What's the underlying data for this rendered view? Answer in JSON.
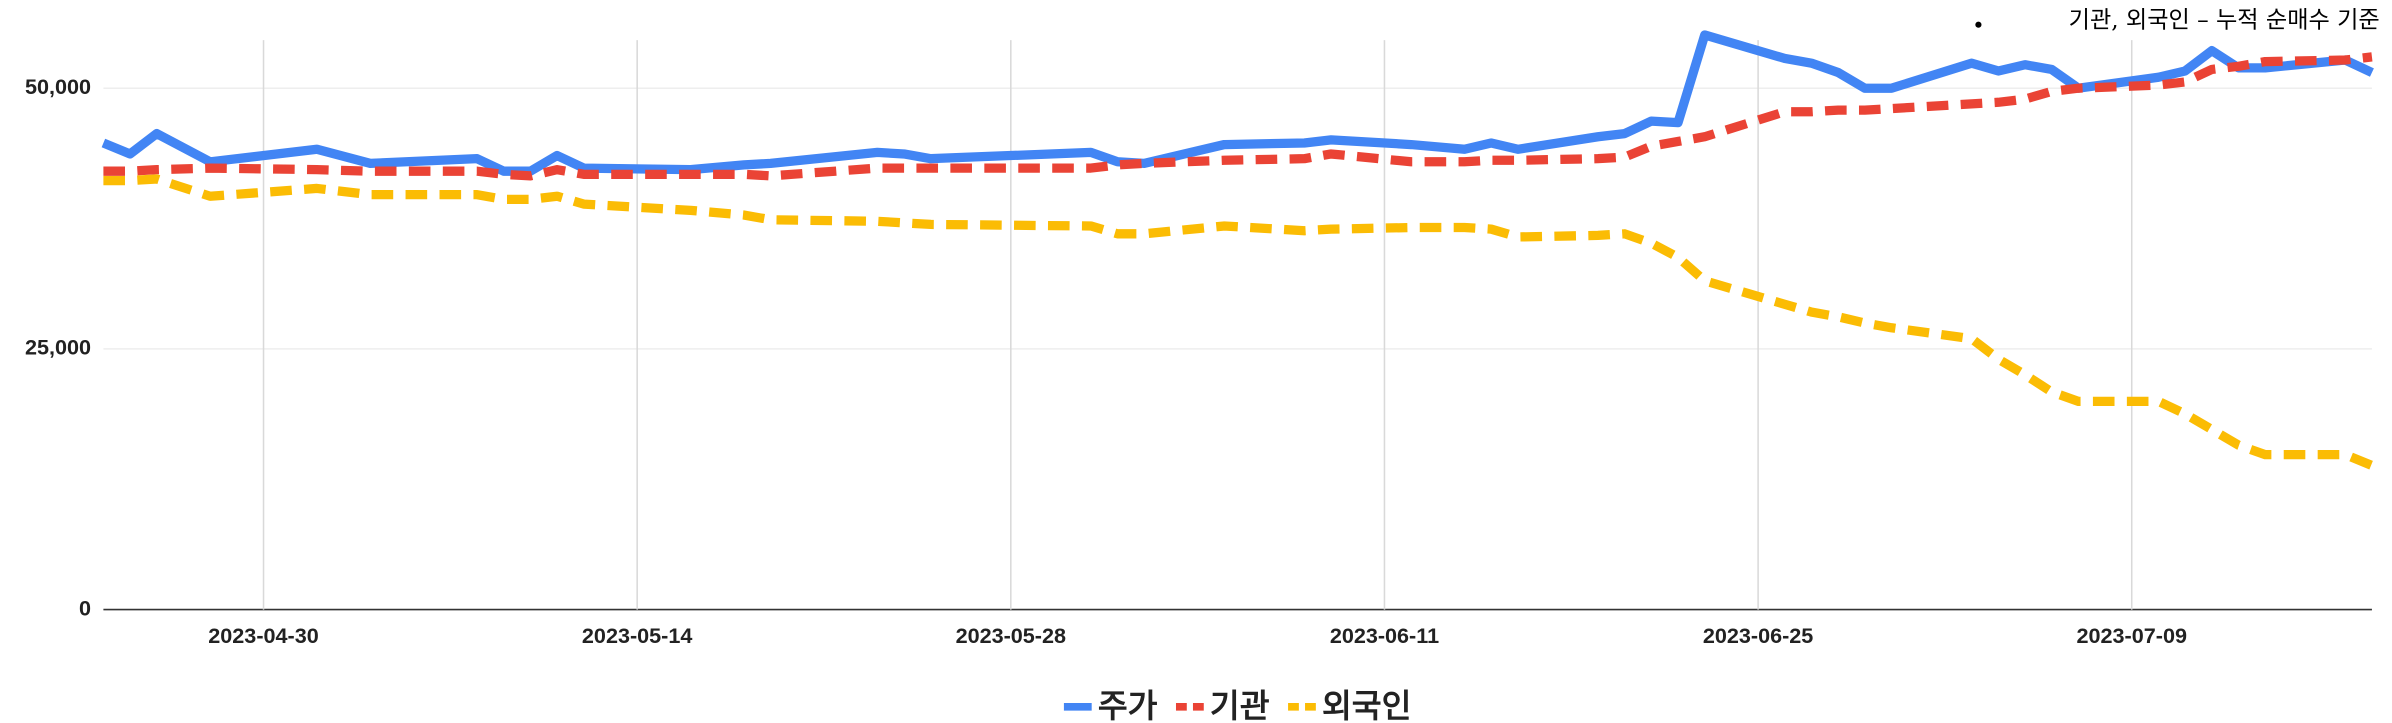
{
  "chart_data": {
    "type": "line",
    "note": "기관, 외국인 – 누적 순매수 기준",
    "x": [
      "2023-04-24",
      "2023-04-25",
      "2023-04-26",
      "2023-04-28",
      "2023-05-02",
      "2023-05-04",
      "2023-05-08",
      "2023-05-09",
      "2023-05-10",
      "2023-05-11",
      "2023-05-12",
      "2023-05-16",
      "2023-05-18",
      "2023-05-19",
      "2023-05-23",
      "2023-05-24",
      "2023-05-25",
      "2023-05-31",
      "2023-06-01",
      "2023-06-02",
      "2023-06-05",
      "2023-06-08",
      "2023-06-09",
      "2023-06-12",
      "2023-06-14",
      "2023-06-15",
      "2023-06-16",
      "2023-06-19",
      "2023-06-20",
      "2023-06-21",
      "2023-06-22",
      "2023-06-23",
      "2023-06-26",
      "2023-06-27",
      "2023-06-28",
      "2023-06-29",
      "2023-06-30",
      "2023-07-03",
      "2023-07-04",
      "2023-07-05",
      "2023-07-06",
      "2023-07-07",
      "2023-07-10",
      "2023-07-11",
      "2023-07-12",
      "2023-07-13",
      "2023-07-14",
      "2023-07-17",
      "2023-07-18"
    ],
    "series": [
      {
        "name": "주가",
        "color": "#4285f4",
        "line_style": "solid",
        "values": [
          44745,
          43694,
          45646,
          42943,
          44144,
          42793,
          43243,
          42042,
          42042,
          43544,
          42342,
          42192,
          42643,
          42793,
          43844,
          43694,
          43243,
          43844,
          42943,
          42793,
          44595,
          44745,
          45045,
          44595,
          44144,
          44745,
          44144,
          45345,
          45646,
          46847,
          46697,
          55105,
          52853,
          52402,
          51502,
          50000,
          50000,
          52402,
          51652,
          52252,
          51802,
          50000,
          51051,
          51652,
          53604,
          51952,
          51952,
          52703,
          51502
        ]
      },
      {
        "name": "기관",
        "color": "#ea4335",
        "line_style": "dashed",
        "values": [
          42042,
          42042,
          42192,
          42342,
          42192,
          42042,
          42042,
          41742,
          41591,
          42192,
          41742,
          41742,
          41742,
          41591,
          42342,
          42342,
          42342,
          42342,
          42643,
          42793,
          43093,
          43243,
          43694,
          42943,
          42943,
          43093,
          43093,
          43243,
          43393,
          44444,
          44895,
          45345,
          47748,
          47748,
          47898,
          47898,
          48048,
          48498,
          48649,
          48949,
          49700,
          50000,
          50300,
          50601,
          51802,
          52102,
          52553,
          52703,
          53003
        ]
      },
      {
        "name": "외국인",
        "color": "#fbbc04",
        "line_style": "dashed",
        "values": [
          41141,
          41141,
          41291,
          39640,
          40390,
          39790,
          39790,
          39339,
          39339,
          39640,
          38889,
          38288,
          37838,
          37387,
          37237,
          37087,
          36937,
          36787,
          36036,
          36036,
          36787,
          36336,
          36486,
          36637,
          36637,
          36486,
          35736,
          35886,
          36036,
          35135,
          33784,
          31532,
          29279,
          28529,
          28078,
          27477,
          27027,
          25976,
          24024,
          22523,
          20871,
          19970,
          19970,
          18769,
          17267,
          15766,
          14865,
          14865,
          13814
        ]
      }
    ],
    "xlim": [
      "2023-04-24",
      "2023-07-18"
    ],
    "xticks": [
      "2023-04-30",
      "2023-05-14",
      "2023-05-28",
      "2023-06-11",
      "2023-06-25",
      "2023-07-09"
    ],
    "ylim": [
      0,
      55500
    ],
    "yticks": [
      0,
      {
        "value": 25000,
        "label": "25,000"
      },
      {
        "value": 50000,
        "label": "50,000"
      }
    ],
    "grid": true,
    "legend": "bottom"
  }
}
